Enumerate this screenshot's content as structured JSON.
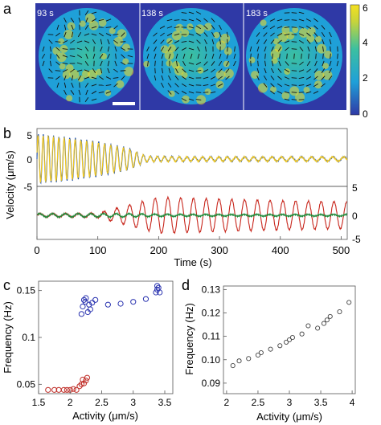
{
  "panels": {
    "a": {
      "label": "a",
      "frames": [
        "93 s",
        "138 s",
        "183 s"
      ],
      "colorbar_ticks": [
        "6",
        "4",
        "2",
        "0"
      ],
      "colors": {
        "bg": "#2f39a6",
        "low": "#1fa0d8",
        "mid": "#3cc0a0",
        "high": "#f5d820"
      }
    },
    "b": {
      "label": "b",
      "ylabel": "Velocity (μm/s)",
      "xlabel": "Time (s)",
      "x_ticks": [
        "0",
        "100",
        "200",
        "300",
        "400",
        "500"
      ],
      "top_left_ticks": [
        "5",
        "0",
        "-5"
      ],
      "right_ticks": [
        "5",
        "0",
        "-5"
      ],
      "colors": {
        "blue": "#1f4fa8",
        "yellow": "#f2c81e",
        "red": "#c8261c",
        "green": "#1f8a3a"
      }
    },
    "c": {
      "label": "c",
      "xlabel": "Activity (μm/s)",
      "ylabel": "Frequency (Hz)",
      "x_ticks": [
        "1.5",
        "2",
        "2.5",
        "3",
        "3.5"
      ],
      "y_ticks": [
        "0.05",
        "0.1",
        "0.15"
      ]
    },
    "d": {
      "label": "d",
      "xlabel": "Activity (μm/s)",
      "ylabel": "Frequency (Hz)",
      "x_ticks": [
        "2",
        "2.5",
        "3",
        "3.5",
        "4"
      ],
      "y_ticks": [
        "0.09",
        "0.10",
        "0.11",
        "0.12",
        "0.13"
      ]
    }
  },
  "chart_data": [
    {
      "type": "line",
      "panel": "b-top",
      "xlabel": "Time (s)",
      "ylabel": "Velocity (μm/s)",
      "xlim": [
        0,
        510
      ],
      "ylim": [
        -5,
        5
      ],
      "series": [
        {
          "color": "#1f4fa8",
          "x": [
            0,
            50,
            100,
            150,
            180,
            250,
            350,
            500
          ],
          "envelope": [
            4.6,
            4.0,
            3.2,
            2.0,
            0.5,
            0.4,
            0.4,
            0.4
          ]
        },
        {
          "color": "#f2c81e",
          "x": [
            0,
            50,
            100,
            150,
            180,
            250,
            350,
            500
          ],
          "envelope": [
            4.4,
            3.8,
            3.0,
            1.9,
            0.5,
            0.4,
            0.4,
            0.4
          ]
        }
      ]
    },
    {
      "type": "line",
      "panel": "b-bottom",
      "xlabel": "Time (s)",
      "xlim": [
        0,
        510
      ],
      "ylim": [
        -5,
        5
      ],
      "series": [
        {
          "color": "#c8261c",
          "x": [
            0,
            50,
            100,
            150,
            200,
            300,
            400,
            500
          ],
          "envelope": [
            0.3,
            0.3,
            0.4,
            1.8,
            3.2,
            2.9,
            2.6,
            2.4
          ]
        },
        {
          "color": "#1f8a3a",
          "x": [
            0,
            50,
            100,
            150,
            200,
            300,
            400,
            500
          ],
          "envelope": [
            0.3,
            0.3,
            0.3,
            0.3,
            0.2,
            0.15,
            0.15,
            0.15
          ]
        }
      ]
    },
    {
      "type": "scatter",
      "panel": "c",
      "xlabel": "Activity (μm/s)",
      "ylabel": "Frequency (Hz)",
      "xlim": [
        1.5,
        3.5
      ],
      "ylim": [
        0.04,
        0.16
      ],
      "series": [
        {
          "color": "#2b34b0",
          "x": [
            2.18,
            2.2,
            2.22,
            2.24,
            2.25,
            2.28,
            2.3,
            2.32,
            2.35,
            2.4,
            2.6,
            2.8,
            3.0,
            3.2,
            3.36,
            3.38,
            3.4,
            3.42,
            3.38
          ],
          "y": [
            0.125,
            0.133,
            0.14,
            0.138,
            0.142,
            0.127,
            0.135,
            0.13,
            0.137,
            0.14,
            0.135,
            0.136,
            0.138,
            0.141,
            0.148,
            0.151,
            0.153,
            0.148,
            0.155
          ]
        },
        {
          "color": "#c0302a",
          "x": [
            1.65,
            1.75,
            1.82,
            1.9,
            1.95,
            2.0,
            2.05,
            2.1,
            2.15,
            2.18,
            2.2,
            2.22,
            2.25,
            2.27
          ],
          "y": [
            0.044,
            0.044,
            0.044,
            0.044,
            0.044,
            0.044,
            0.045,
            0.044,
            0.048,
            0.05,
            0.055,
            0.051,
            0.054,
            0.057
          ]
        }
      ]
    },
    {
      "type": "scatter",
      "panel": "d",
      "xlabel": "Activity (μm/s)",
      "ylabel": "Frequency (Hz)",
      "xlim": [
        2,
        4
      ],
      "ylim": [
        0.09,
        0.13
      ],
      "series": [
        {
          "color": "#444444",
          "x": [
            2.1,
            2.2,
            2.35,
            2.5,
            2.55,
            2.7,
            2.85,
            2.95,
            3.0,
            3.05,
            3.2,
            3.3,
            3.45,
            3.55,
            3.6,
            3.65,
            3.8,
            3.95
          ],
          "y": [
            0.0975,
            0.0995,
            0.1005,
            0.102,
            0.103,
            0.1045,
            0.106,
            0.1075,
            0.1085,
            0.1095,
            0.111,
            0.1145,
            0.1135,
            0.1155,
            0.117,
            0.1185,
            0.1205,
            0.1245
          ]
        }
      ]
    }
  ]
}
